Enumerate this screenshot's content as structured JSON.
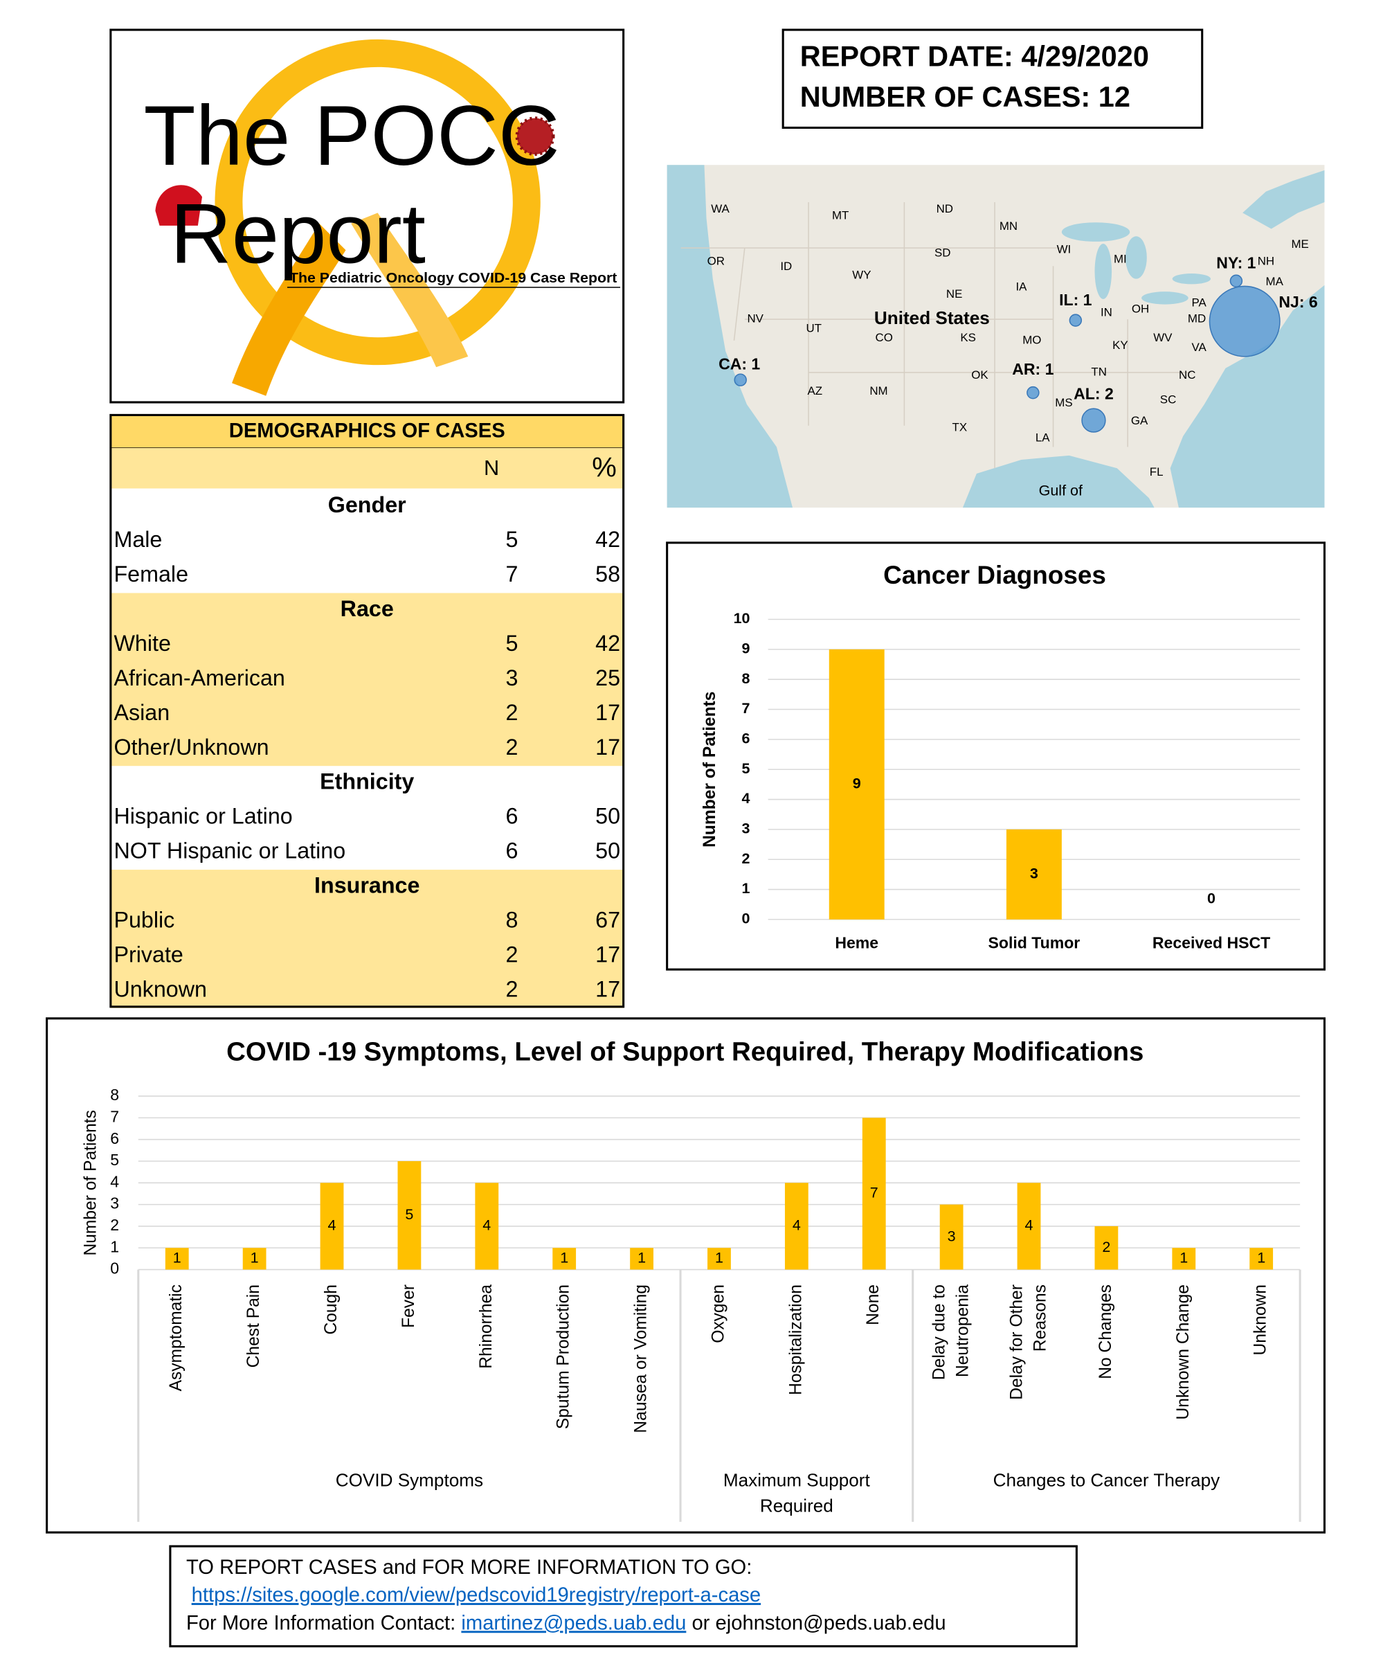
{
  "logo": {
    "title_line1": "The POCC",
    "title_line2": "Report",
    "subtitle": "The Pediatric Oncology COVID-19 Case Report"
  },
  "report": {
    "date": "REPORT DATE: 4/29/2020",
    "cases": "NUMBER OF CASES: 12"
  },
  "map": {
    "country": "United States",
    "sea": "Gulf of",
    "labels": [
      "WA",
      "MT",
      "ND",
      "MN",
      "OR",
      "ID",
      "WY",
      "SD",
      "WI",
      "MI",
      "ME",
      "NE",
      "IA",
      "NV",
      "UT",
      "CO",
      "KS",
      "MO",
      "IN",
      "OH",
      "PA",
      "MD",
      "NH",
      "MA",
      "KY",
      "WV",
      "VA",
      "AZ",
      "NM",
      "OK",
      "TN",
      "NC",
      "MS",
      "SC",
      "GA",
      "TX",
      "LA",
      "FL"
    ],
    "bubbles": [
      {
        "label": "CA: 1",
        "value": 1
      },
      {
        "label": "AR: 1",
        "value": 1
      },
      {
        "label": "IL: 1",
        "value": 1
      },
      {
        "label": "AL: 2",
        "value": 2
      },
      {
        "label": "NY: 1",
        "value": 1
      },
      {
        "label": "NJ: 6",
        "value": 6
      }
    ]
  },
  "demographics": {
    "title": "DEMOGRAPHICS OF CASES",
    "columns": [
      "N",
      "%"
    ],
    "sections": [
      {
        "name": "Gender",
        "rows": [
          {
            "label": "Male",
            "n": 5,
            "pct": 42
          },
          {
            "label": "Female",
            "n": 7,
            "pct": 58
          }
        ]
      },
      {
        "name": "Race",
        "rows": [
          {
            "label": "White",
            "n": 5,
            "pct": 42
          },
          {
            "label": "African-American",
            "n": 3,
            "pct": 25
          },
          {
            "label": "Asian",
            "n": 2,
            "pct": 17
          },
          {
            "label": "Other/Unknown",
            "n": 2,
            "pct": 17
          }
        ]
      },
      {
        "name": "Ethnicity",
        "rows": [
          {
            "label": "Hispanic or Latino",
            "n": 6,
            "pct": 50
          },
          {
            "label": "NOT Hispanic or Latino",
            "n": 6,
            "pct": 50
          }
        ]
      },
      {
        "name": "Insurance",
        "rows": [
          {
            "label": "Public",
            "n": 8,
            "pct": 67
          },
          {
            "label": "Private",
            "n": 2,
            "pct": 17
          },
          {
            "label": "Unknown",
            "n": 2,
            "pct": 17
          }
        ]
      }
    ]
  },
  "chart_data": [
    {
      "type": "bar",
      "title": "Cancer Diagnoses",
      "y_label": "Number of Patients",
      "categories": [
        "Heme",
        "Solid Tumor",
        "Received HSCT"
      ],
      "values": [
        9,
        3,
        0
      ],
      "color": "#ffc000",
      "ylim": [
        0,
        10
      ],
      "yticks": [
        0,
        1,
        2,
        3,
        4,
        5,
        6,
        7,
        8,
        9,
        10
      ],
      "grid": true
    },
    {
      "type": "bar",
      "title": "COVID -19 Symptoms,  Level of Support Required, Therapy Modifications",
      "y_label": "Number of Patients",
      "color": "#ffc000",
      "ylim": [
        0,
        8
      ],
      "yticks": [
        0,
        1,
        2,
        3,
        4,
        5,
        6,
        7,
        8
      ],
      "grid": true,
      "groups": [
        {
          "name": "COVID Symptoms",
          "categories": [
            "Asymptomatic",
            "Chest Pain",
            "Cough",
            "Fever",
            "Rhinorrhea",
            "Sputum Production",
            "Nausea or Vomiting"
          ],
          "values": [
            1,
            1,
            4,
            5,
            4,
            1,
            1
          ]
        },
        {
          "name": "Maximum Support\nRequired",
          "categories": [
            "Oxygen",
            "Hospitalization",
            "None"
          ],
          "values": [
            1,
            4,
            7
          ]
        },
        {
          "name": "Changes to Cancer Therapy",
          "categories": [
            "Delay due to\nNeutropenia",
            "Delay for Other\nReasons",
            "No Changes",
            "Unknown Change",
            "Unknown"
          ],
          "values": [
            3,
            4,
            2,
            1,
            1
          ]
        }
      ]
    }
  ],
  "footer": {
    "line1": "TO REPORT CASES and FOR MORE INFORMATION TO GO:",
    "link": "https://sites.google.com/view/pedscovid19registry/report-a-case",
    "contact_prefix": "For More Information Contact:",
    "email1": "imartinez@peds.uab.edu",
    "contact_join": "or",
    "email2": "ejohnston@peds.uab.edu"
  }
}
